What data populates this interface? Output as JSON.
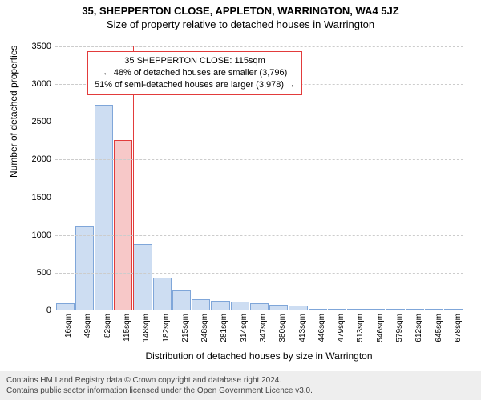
{
  "titles": {
    "address": "35, SHEPPERTON CLOSE, APPLETON, WARRINGTON, WA4 5JZ",
    "subtitle": "Size of property relative to detached houses in Warrington"
  },
  "ylabel": "Number of detached properties",
  "xlabel": "Distribution of detached houses by size in Warrington",
  "y": {
    "min": 0,
    "max": 3500,
    "step": 500,
    "ticks": [
      0,
      500,
      1000,
      1500,
      2000,
      2500,
      3000,
      3500
    ]
  },
  "x": {
    "labels": [
      "16sqm",
      "49sqm",
      "82sqm",
      "115sqm",
      "148sqm",
      "182sqm",
      "215sqm",
      "248sqm",
      "281sqm",
      "314sqm",
      "347sqm",
      "380sqm",
      "413sqm",
      "446sqm",
      "479sqm",
      "513sqm",
      "546sqm",
      "579sqm",
      "612sqm",
      "645sqm",
      "678sqm"
    ]
  },
  "bars": {
    "values": [
      80,
      1100,
      2720,
      2250,
      870,
      420,
      250,
      140,
      120,
      110,
      90,
      60,
      50,
      10,
      8,
      8,
      6,
      5,
      5,
      4,
      3
    ],
    "fill_color": "#cdddf2",
    "border_color": "#7fa6d9",
    "highlight_fill": "#f7c8c8",
    "highlight_border": "#e23b3b",
    "highlight_index": 3
  },
  "highlight": {
    "line_color": "#e23b3b",
    "line_width": 1
  },
  "callout": {
    "border_color": "#e23b3b",
    "lines": [
      "35 SHEPPERTON CLOSE: 115sqm",
      "← 48% of detached houses are smaller (3,796)",
      "51% of semi-detached houses are larger (3,978) →"
    ]
  },
  "style": {
    "grid_color": "#cccccc",
    "axis_color": "#888888",
    "background": "#ffffff",
    "title_fontsize": 13,
    "label_fontsize": 12,
    "tick_fontsize": 11,
    "xtick_fontsize": 10
  },
  "footer": {
    "bg": "#eeeeee",
    "line1": "Contains HM Land Registry data © Crown copyright and database right 2024.",
    "line2": "Contains public sector information licensed under the Open Government Licence v3.0."
  }
}
